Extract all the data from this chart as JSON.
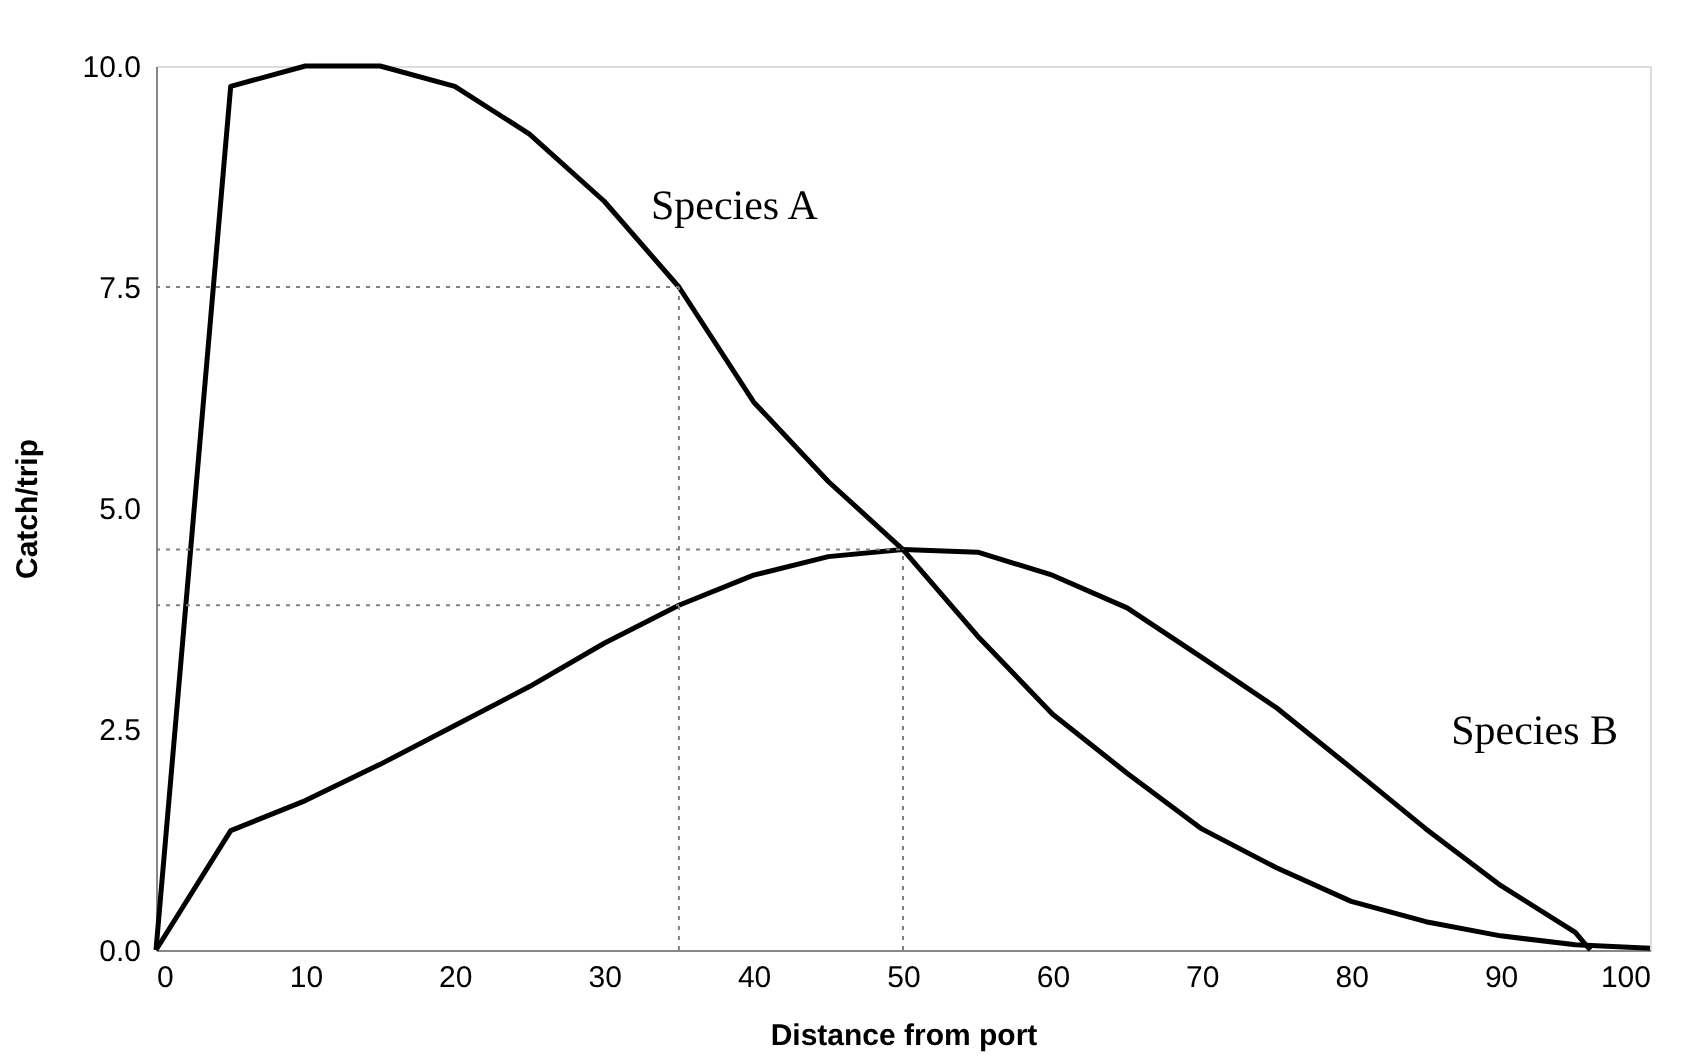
{
  "chart_data": {
    "type": "line",
    "xlabel": "Distance from port",
    "ylabel": "Catch/trip",
    "xlim": [
      0,
      100
    ],
    "xticks": [
      0,
      10,
      20,
      30,
      40,
      50,
      60,
      70,
      80,
      90,
      100
    ],
    "ylim": [
      0,
      10
    ],
    "yticks": [
      {
        "value": 0,
        "label": "0.0"
      },
      {
        "value": 2.5,
        "label": "2.5"
      },
      {
        "value": 5,
        "label": "5.0"
      },
      {
        "value": 7.5,
        "label": "7.5"
      },
      {
        "value": 10,
        "label": "10.0"
      }
    ],
    "grid": false,
    "marker": "none",
    "line_style": "solid",
    "series": [
      {
        "name": "Species A",
        "color": "#000000",
        "x": [
          0,
          5,
          10,
          15,
          20,
          25,
          30,
          35,
          40,
          45,
          50,
          55,
          60,
          65,
          70,
          75,
          80,
          85,
          90,
          95,
          100
        ],
        "values": [
          0,
          9.77,
          10.0,
          10.0,
          9.77,
          9.23,
          8.47,
          7.5,
          6.2,
          5.3,
          4.53,
          3.55,
          2.67,
          2.0,
          1.37,
          0.93,
          0.55,
          0.32,
          0.16,
          0.06,
          0.02
        ]
      },
      {
        "name": "Species B",
        "color": "#000000",
        "x": [
          0,
          5,
          10,
          15,
          20,
          25,
          30,
          35,
          40,
          45,
          50,
          55,
          60,
          65,
          70,
          75,
          80,
          85,
          90,
          95,
          96
        ],
        "values": [
          0,
          1.35,
          1.69,
          2.1,
          2.54,
          2.98,
          3.47,
          3.9,
          4.24,
          4.45,
          4.53,
          4.5,
          4.24,
          3.87,
          3.31,
          2.74,
          2.06,
          1.37,
          0.73,
          0.2,
          0
        ]
      },
      {
        "type": "line",
        "line_style": "dotted",
        "color": "#808080",
        "x": [
          0,
          35
        ],
        "values": [
          7.5,
          7.5
        ]
      },
      {
        "type": "line",
        "line_style": "dotted",
        "color": "#808080",
        "x": [
          35,
          35
        ],
        "values": [
          0,
          7.5
        ]
      },
      {
        "type": "line",
        "line_style": "dotted",
        "color": "#808080",
        "x": [
          0,
          50
        ],
        "values": [
          4.53,
          4.53
        ]
      },
      {
        "type": "line",
        "line_style": "dotted",
        "color": "#808080",
        "x": [
          50,
          50
        ],
        "values": [
          0,
          4.53
        ]
      },
      {
        "type": "line",
        "line_style": "dotted",
        "color": "#808080",
        "x": [
          0,
          35
        ],
        "values": [
          3.9,
          3.9
        ]
      }
    ]
  }
}
